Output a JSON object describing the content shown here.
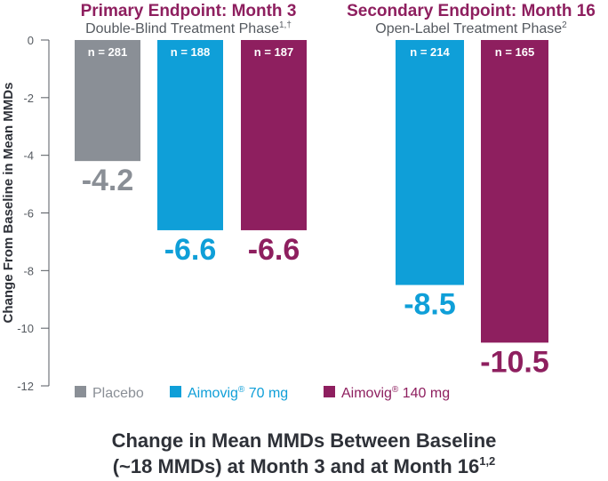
{
  "chart_data": {
    "type": "bar",
    "groups": [
      {
        "title": "Primary Endpoint: Month 3",
        "subtitle": "Double-Blind Treatment Phase",
        "subtitle_sup": "1,†",
        "bars": [
          {
            "series": "Placebo",
            "value": -4.2,
            "label": "-4.2",
            "n": "n = 281"
          },
          {
            "series": "Aimovig 70 mg",
            "value": -6.6,
            "label": "-6.6",
            "n": "n = 188"
          },
          {
            "series": "Aimovig 140 mg",
            "value": -6.6,
            "label": "-6.6",
            "n": "n = 187"
          }
        ]
      },
      {
        "title": "Secondary Endpoint: Month 16",
        "subtitle": "Open-Label Treatment Phase",
        "subtitle_sup": "2",
        "bars": [
          {
            "series": "Aimovig 70 mg",
            "value": -8.5,
            "label": "-8.5",
            "n": "n = 214"
          },
          {
            "series": "Aimovig 140 mg",
            "value": -10.5,
            "label": "-10.5",
            "n": "n = 165"
          }
        ]
      }
    ],
    "ylabel": "Change From Baseline in Mean MMDs",
    "ylim": [
      -12,
      0
    ],
    "yticks": [
      "0",
      "-2",
      "-4",
      "-6",
      "-8",
      "-10",
      "-12"
    ],
    "legend": {
      "placement": "bottom-left",
      "entries": [
        {
          "name": "Placebo",
          "sup": "",
          "suffix": "",
          "color": "#8a8f96"
        },
        {
          "name": "Aimovig",
          "sup": "®",
          "suffix": " 70 mg",
          "color": "#0f9fd8"
        },
        {
          "name": "Aimovig",
          "sup": "®",
          "suffix": " 140 mg",
          "color": "#8e1f5f"
        }
      ]
    },
    "title_line1": "Change in Mean MMDs Between Baseline",
    "title_line2": "(~18 MMDs) at Month 3 and at Month 16",
    "title_sup": "1,2",
    "colors": {
      "Placebo": "#8a8f96",
      "Aimovig 70 mg": "#0f9fd8",
      "Aimovig 140 mg": "#8e1f5f",
      "group_title": "#8e1f5f",
      "text": "#2e3138",
      "axis": "#555a60"
    }
  }
}
